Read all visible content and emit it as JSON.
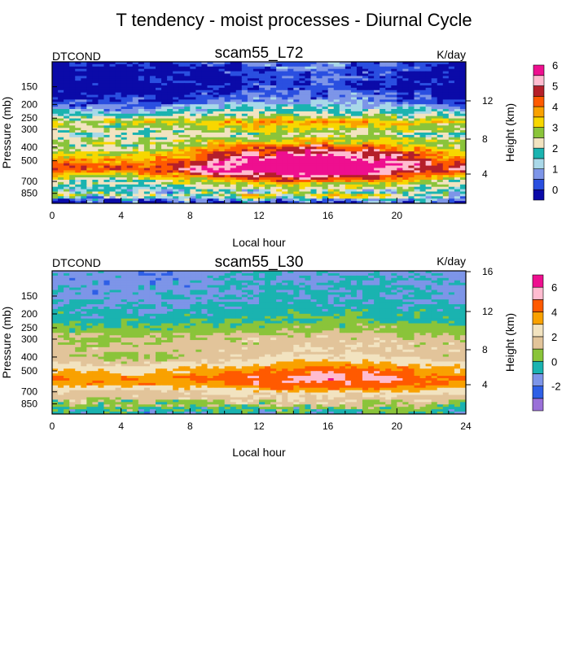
{
  "figure_title": "T tendency - moist processes - Diurnal Cycle",
  "colors": {
    "palette_72": [
      "#0b0aa8",
      "#2a4fe0",
      "#7d95e8",
      "#a9d8e8",
      "#1ab3b0",
      "#f2e3c0",
      "#8ac43a",
      "#f7d700",
      "#f9a100",
      "#ff5a00",
      "#b51f2a",
      "#ffbcd0",
      "#ee0f8f"
    ],
    "palette_30": [
      "#9a70d8",
      "#2e5fe6",
      "#7d95e8",
      "#1ab3b0",
      "#8ac43a",
      "#e2c49a",
      "#f2e3c0",
      "#f9a100",
      "#ff5a00",
      "#ffbcd0",
      "#ee0f8f"
    ]
  },
  "chart_data": [
    {
      "type": "heatmap",
      "subtype": "filled-contour",
      "title": "scam55_L72",
      "left_label": "DTCOND",
      "units_label": "K/day",
      "xlabel": "Local hour",
      "ylabel": "Pressure (mb)",
      "right_axis_label": "Height (km)",
      "xlim": [
        0,
        24
      ],
      "x_ticks": [
        "0",
        "4",
        "8",
        "12",
        "16",
        "20"
      ],
      "y_ticks": [
        "150",
        "200",
        "250",
        "300",
        "400",
        "500",
        "700",
        "850"
      ],
      "y_scale": "log-pressure",
      "ylim": [
        1000,
        100
      ],
      "height_ticks": [
        "12",
        "8",
        "4"
      ],
      "colorbar_labels": [
        "0",
        "1",
        "2",
        "3",
        "4",
        "5",
        "6"
      ],
      "colorbar_levels": [
        -0.5,
        0,
        0.5,
        1,
        1.5,
        2,
        2.5,
        3,
        3.5,
        4,
        4.5,
        5,
        5.5,
        6,
        6.5
      ],
      "profile": [
        {
          "p": 100,
          "v": 0.2
        },
        {
          "p": 130,
          "v": -0.3
        },
        {
          "p": 160,
          "v": -0.1
        },
        {
          "p": 190,
          "v": 0.4
        },
        {
          "p": 215,
          "v": 1.3
        },
        {
          "p": 240,
          "v": 2.1
        },
        {
          "p": 265,
          "v": 3.4
        },
        {
          "p": 290,
          "v": 2.9
        },
        {
          "p": 330,
          "v": 2.2
        },
        {
          "p": 380,
          "v": 3.2
        },
        {
          "p": 430,
          "v": 3.9
        },
        {
          "p": 470,
          "v": 4.4
        },
        {
          "p": 520,
          "v": 5.3
        },
        {
          "p": 580,
          "v": 5.4
        },
        {
          "p": 640,
          "v": 4.2
        },
        {
          "p": 700,
          "v": 3.0
        },
        {
          "p": 760,
          "v": 2.3
        },
        {
          "p": 820,
          "v": 1.7
        },
        {
          "p": 880,
          "v": 2.4
        },
        {
          "p": 940,
          "v": 1.0
        },
        {
          "p": 1000,
          "v": 0.0
        }
      ],
      "diurnal_amplitude": 1.2,
      "diurnal_peak_hour": 15,
      "legend": "right colorbar"
    },
    {
      "type": "heatmap",
      "subtype": "filled-contour",
      "title": "scam55_L30",
      "left_label": "DTCOND",
      "units_label": "K/day",
      "xlabel": "Local hour",
      "ylabel": "Pressure (mb)",
      "right_axis_label": "Height (km)",
      "xlim": [
        0,
        24
      ],
      "x_ticks": [
        "0",
        "4",
        "8",
        "12",
        "16",
        "20",
        "24"
      ],
      "y_ticks": [
        "150",
        "200",
        "250",
        "300",
        "400",
        "500",
        "700",
        "850"
      ],
      "y_scale": "log-pressure",
      "ylim": [
        1000,
        100
      ],
      "height_ticks": [
        "16",
        "12",
        "8",
        "4"
      ],
      "colorbar_labels": [
        "-2",
        "0",
        "2",
        "4",
        "6"
      ],
      "colorbar_levels": [
        -3,
        -2,
        -1,
        0,
        1,
        2,
        3,
        4,
        5,
        6,
        7,
        8
      ],
      "profile": [
        {
          "p": 100,
          "v": -0.4
        },
        {
          "p": 140,
          "v": -0.1
        },
        {
          "p": 180,
          "v": 0.2
        },
        {
          "p": 215,
          "v": 0.8
        },
        {
          "p": 250,
          "v": 1.4
        },
        {
          "p": 290,
          "v": 2.2
        },
        {
          "p": 340,
          "v": 2.6
        },
        {
          "p": 400,
          "v": 2.6
        },
        {
          "p": 440,
          "v": 3.4
        },
        {
          "p": 500,
          "v": 4.6
        },
        {
          "p": 560,
          "v": 5.6
        },
        {
          "p": 620,
          "v": 5.2
        },
        {
          "p": 680,
          "v": 3.8
        },
        {
          "p": 740,
          "v": 2.8
        },
        {
          "p": 800,
          "v": 2.5
        },
        {
          "p": 870,
          "v": 1.8
        },
        {
          "p": 930,
          "v": 0.9
        },
        {
          "p": 1000,
          "v": 0.2
        }
      ],
      "diurnal_amplitude": 0.8,
      "diurnal_peak_hour": 16,
      "legend": "right colorbar"
    }
  ]
}
